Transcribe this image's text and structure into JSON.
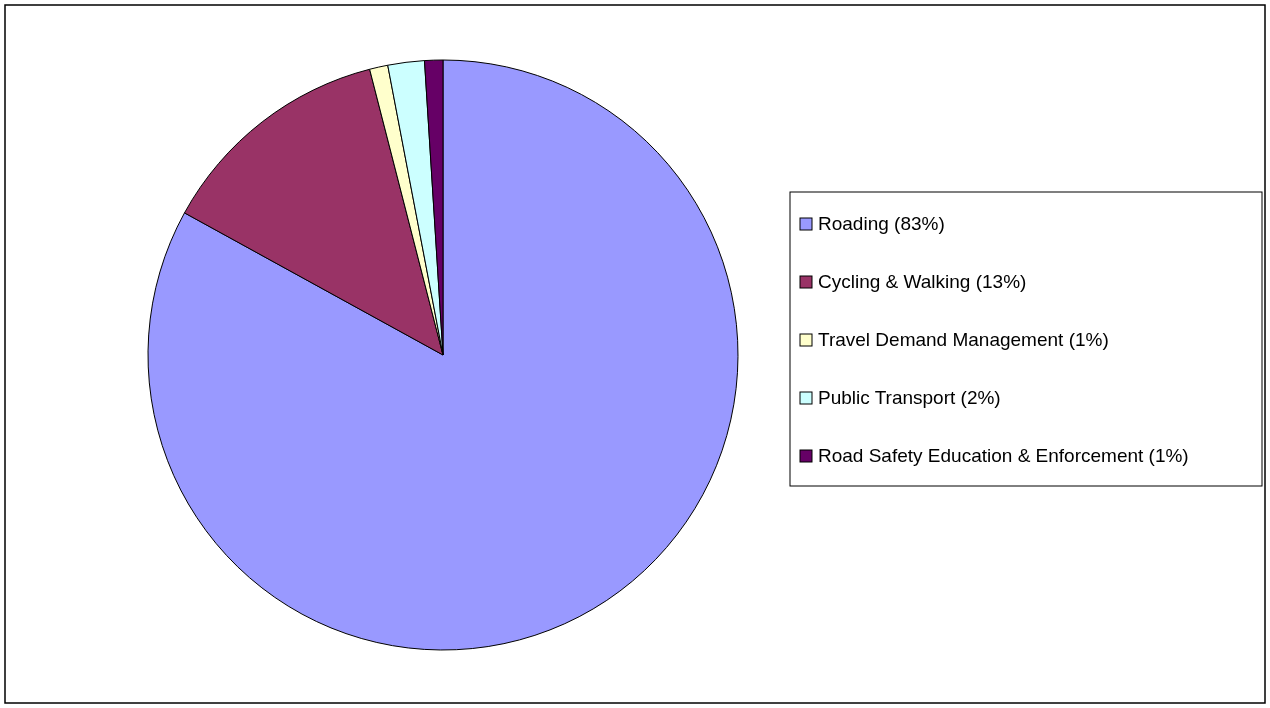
{
  "chart_data": {
    "type": "pie",
    "categories": [
      "Roading (83%)",
      "Cycling & Walking (13%)",
      "Travel Demand Management (1%)",
      "Public Transport (2%)",
      "Road Safety Education & Enforcement (1%)"
    ],
    "values": [
      83,
      13,
      1,
      2,
      1
    ],
    "colors": [
      "#9999ff",
      "#993366",
      "#ffffcc",
      "#ccffff",
      "#660066"
    ],
    "legend": "right"
  }
}
